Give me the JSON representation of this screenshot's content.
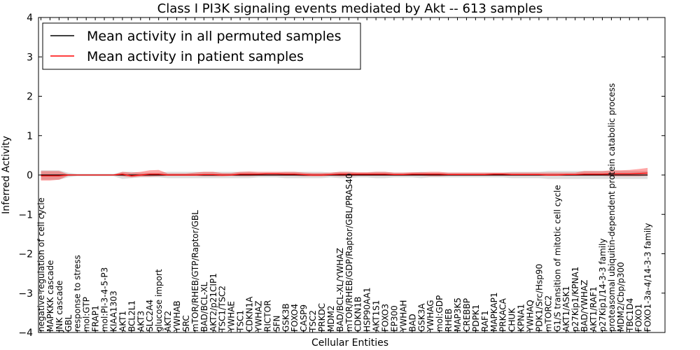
{
  "chart_data": {
    "type": "line",
    "title": "Class I PI3K signaling events mediated by Akt -- 613 samples",
    "xlabel": "Cellular Entities",
    "ylabel": "Inferred Activity",
    "ylim": [
      -4,
      4
    ],
    "yticks": [
      -4,
      -3,
      -2,
      -1,
      0,
      1,
      2,
      3,
      4
    ],
    "ytick_labels": [
      "−4",
      "−3",
      "−2",
      "−1",
      "0",
      "1",
      "2",
      "3",
      "4"
    ],
    "legend_position": "top-left",
    "categories": [
      "negative regulation of cell cycle",
      "MAPKKK cascade",
      "JNK cascade",
      "GBL",
      "response to stress",
      "mol:GTP",
      "FRAP1",
      "mol:PI-3-4-5-P3",
      "KIAA1303",
      "AKT1",
      "BCL2L1",
      "AKT3",
      "SLC2A4",
      "glucose import",
      "AKT2",
      "YWHAB",
      "SRC",
      "mTOR/RHEB/GTP/Raptor/GBL",
      "BAD/BCL-XL",
      "AKT2/p21CIP1",
      "TSC1/TSC2",
      "YWHAE",
      "TSC1",
      "CDKN1A",
      "YWHAZ",
      "RICTOR",
      "SFN",
      "GSK3B",
      "FOXO4",
      "CASP9",
      "TSC2",
      "PRKDC",
      "MDM2",
      "BAD/BCL-XL/YWHAZ",
      "mTOR/RHEB/GDP/Raptor/GBL/PRAS40",
      "CDKN1B",
      "HSP90AA1",
      "AKT1S1",
      "FOXO3",
      "EP300",
      "YWHAH",
      "BAD",
      "GSK3A",
      "YWHAG",
      "mol:GDP",
      "RHEB",
      "MAP3K5",
      "CREBBP",
      "PDPK1",
      "RAF1",
      "MAPKAP1",
      "PRKACA",
      "CHUK",
      "KPNA1",
      "YWHAQ",
      "PDK1/Src/Hsp90",
      "mTORC2",
      "G1/S transition of mitotic cell cycle",
      "AKT1/ASK1",
      "p27Kip1/KPNA1",
      "BAD/YWHAZ",
      "AKT1/RAF1",
      "p27Kip1/14-3-3 family",
      "proteasomal ubiquitin-dependent protein catabolic process",
      "MDM2/Cbp/p300",
      "TBC1D4",
      "FOXO1",
      "FOXO1-3a-4/14-3-3 family"
    ],
    "series": [
      {
        "name": "Mean activity in all permuted samples",
        "color": "#000000",
        "values": [
          0,
          0,
          0,
          0,
          0,
          0,
          0,
          0,
          0,
          0,
          0,
          0,
          0,
          0,
          0,
          0,
          0,
          0,
          0,
          0,
          0,
          0,
          0,
          0,
          0,
          0,
          0,
          0,
          0,
          0,
          0,
          0,
          0,
          0,
          0,
          0,
          0,
          0,
          0,
          0,
          0,
          0,
          0,
          0,
          0,
          0,
          0,
          0,
          0,
          0,
          0,
          0,
          0,
          0,
          0,
          0,
          0,
          0,
          0,
          0,
          0,
          0,
          0,
          0,
          0,
          0,
          0,
          0
        ],
        "band_lower": [
          -0.12,
          -0.12,
          -0.12,
          -0.06,
          -0.03,
          -0.03,
          -0.03,
          -0.03,
          -0.03,
          -0.1,
          -0.08,
          -0.06,
          -0.06,
          -0.06,
          -0.08,
          -0.08,
          -0.08,
          -0.08,
          -0.08,
          -0.08,
          -0.08,
          -0.08,
          -0.08,
          -0.08,
          -0.06,
          -0.06,
          -0.06,
          -0.08,
          -0.08,
          -0.08,
          -0.08,
          -0.08,
          -0.06,
          -0.08,
          -0.08,
          -0.06,
          -0.06,
          -0.08,
          -0.08,
          -0.06,
          -0.06,
          -0.06,
          -0.08,
          -0.06,
          -0.06,
          -0.06,
          -0.06,
          -0.06,
          -0.06,
          -0.06,
          -0.06,
          -0.06,
          -0.08,
          -0.08,
          -0.08,
          -0.08,
          -0.1,
          -0.1,
          -0.1,
          -0.1,
          -0.1,
          -0.1,
          -0.1,
          -0.1,
          -0.1,
          -0.1,
          -0.1,
          -0.1
        ],
        "band_upper": [
          0.12,
          0.12,
          0.12,
          0.06,
          0.03,
          0.03,
          0.03,
          0.03,
          0.03,
          0.08,
          0.08,
          0.06,
          0.06,
          0.06,
          0.08,
          0.08,
          0.08,
          0.08,
          0.08,
          0.08,
          0.08,
          0.08,
          0.08,
          0.08,
          0.06,
          0.06,
          0.06,
          0.08,
          0.08,
          0.08,
          0.08,
          0.08,
          0.06,
          0.08,
          0.08,
          0.06,
          0.06,
          0.08,
          0.08,
          0.06,
          0.06,
          0.06,
          0.08,
          0.06,
          0.06,
          0.06,
          0.06,
          0.06,
          0.06,
          0.06,
          0.06,
          0.06,
          0.08,
          0.08,
          0.08,
          0.08,
          0.1,
          0.1,
          0.1,
          0.1,
          0.1,
          0.1,
          0.1,
          0.1,
          0.1,
          0.1,
          0.1,
          0.1
        ]
      },
      {
        "name": "Mean activity in patient samples",
        "color": "#ff0000",
        "values": [
          -0.02,
          -0.02,
          -0.02,
          0,
          0,
          0,
          0,
          0,
          0,
          0.02,
          -0.02,
          0,
          0.02,
          0.02,
          0,
          0,
          0,
          0,
          0.01,
          0.01,
          0,
          0,
          0.02,
          0.02,
          0.02,
          0.03,
          0.03,
          0.02,
          0.02,
          0.01,
          0,
          0,
          0.01,
          0.02,
          0.02,
          0.02,
          0.02,
          0.02,
          0.02,
          0.01,
          0.01,
          0.02,
          0.02,
          0.02,
          0.02,
          0.01,
          0.01,
          0.01,
          0.01,
          0.01,
          0.02,
          0.02,
          0.01,
          0.01,
          0.01,
          0.01,
          0,
          0,
          0.01,
          0.01,
          0.02,
          0.02,
          0.02,
          0.03,
          0.03,
          0.03,
          0.04,
          0.05
        ],
        "band_lower": [
          -0.14,
          -0.14,
          -0.12,
          -0.02,
          -0.01,
          -0.01,
          -0.01,
          -0.01,
          -0.01,
          -0.03,
          -0.06,
          -0.04,
          -0.04,
          -0.03,
          -0.02,
          -0.02,
          -0.02,
          -0.02,
          -0.03,
          -0.03,
          -0.03,
          -0.02,
          -0.03,
          -0.03,
          -0.02,
          -0.02,
          -0.02,
          -0.02,
          -0.02,
          -0.03,
          -0.03,
          -0.03,
          -0.02,
          -0.03,
          -0.03,
          -0.02,
          -0.02,
          -0.02,
          -0.02,
          -0.02,
          -0.02,
          -0.02,
          -0.02,
          -0.03,
          -0.03,
          -0.02,
          -0.02,
          -0.02,
          -0.02,
          -0.02,
          -0.02,
          -0.02,
          -0.02,
          -0.02,
          -0.02,
          -0.02,
          -0.02,
          -0.02,
          -0.02,
          -0.02,
          -0.02,
          -0.02,
          -0.02,
          -0.03,
          -0.03,
          -0.03,
          -0.03,
          -0.02
        ],
        "band_upper": [
          0.1,
          0.1,
          0.1,
          0.02,
          0.01,
          0.01,
          0.01,
          0.01,
          0.01,
          0.08,
          0.06,
          0.08,
          0.12,
          0.13,
          0.04,
          0.04,
          0.04,
          0.06,
          0.08,
          0.08,
          0.05,
          0.05,
          0.08,
          0.09,
          0.08,
          0.08,
          0.08,
          0.08,
          0.08,
          0.06,
          0.05,
          0.05,
          0.06,
          0.08,
          0.08,
          0.07,
          0.07,
          0.08,
          0.08,
          0.06,
          0.06,
          0.07,
          0.07,
          0.08,
          0.08,
          0.06,
          0.06,
          0.06,
          0.06,
          0.06,
          0.06,
          0.06,
          0.06,
          0.06,
          0.06,
          0.06,
          0.06,
          0.06,
          0.06,
          0.06,
          0.1,
          0.1,
          0.1,
          0.12,
          0.12,
          0.13,
          0.15,
          0.18
        ]
      }
    ]
  }
}
